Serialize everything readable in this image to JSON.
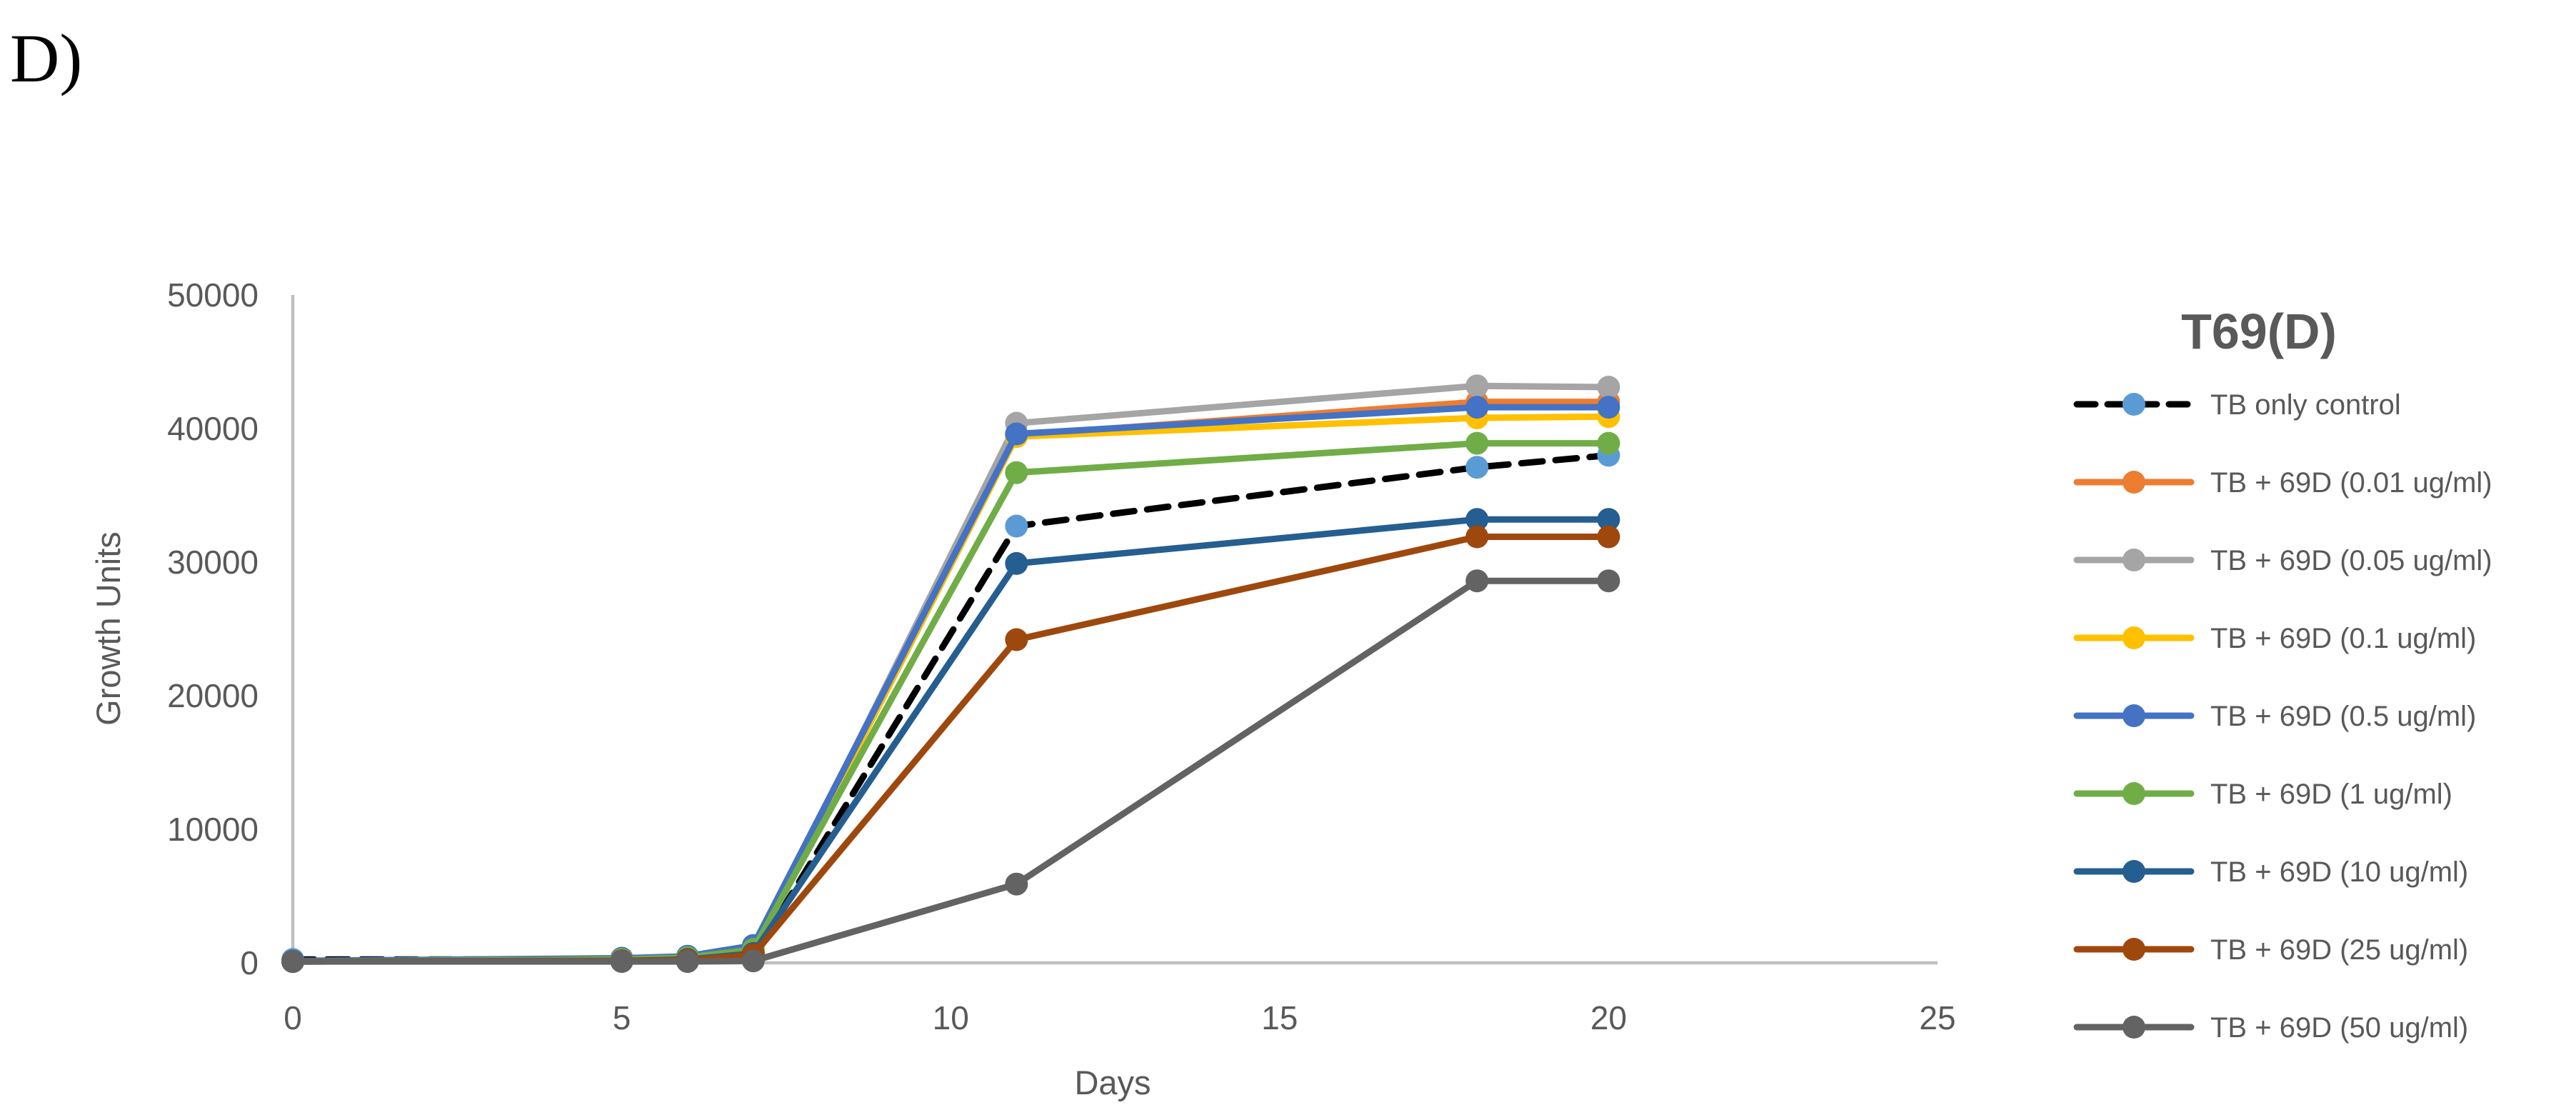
{
  "panel_label": "D)",
  "colors": {
    "axis_line": "#BFBFBF",
    "text": "#595959",
    "panel_label_color": "#000000"
  },
  "chart_data": {
    "type": "line",
    "title": "T69(D)",
    "xlabel": "Days",
    "ylabel": "Growth Units",
    "xlim": [
      0,
      25
    ],
    "ylim": [
      0,
      50000
    ],
    "x_ticks": [
      "0",
      "5",
      "10",
      "15",
      "20",
      "25"
    ],
    "y_ticks": [
      "0",
      "10000",
      "20000",
      "30000",
      "40000",
      "50000"
    ],
    "x_tick_values": [
      0,
      5,
      10,
      15,
      20,
      25
    ],
    "y_tick_values": [
      0,
      10000,
      20000,
      30000,
      40000,
      50000
    ],
    "grid": false,
    "legend_position": "right",
    "x": [
      0,
      5,
      6,
      7,
      11,
      18,
      20
    ],
    "series": [
      {
        "name": "TB only control",
        "line_color": "#000000",
        "marker_color": "#5B9BD5",
        "dashed": true,
        "values": [
          250,
          250,
          300,
          450,
          32700,
          37100,
          38000
        ]
      },
      {
        "name": "TB + 69D (0.01 ug/ml)",
        "line_color": "#ED7D31",
        "marker_color": "#ED7D31",
        "dashed": false,
        "values": [
          100,
          150,
          250,
          800,
          39500,
          42000,
          42000
        ]
      },
      {
        "name": "TB + 69D (0.05 ug/ml)",
        "line_color": "#A5A5A5",
        "marker_color": "#A5A5A5",
        "dashed": false,
        "values": [
          100,
          150,
          250,
          800,
          40400,
          43200,
          43100
        ]
      },
      {
        "name": "TB + 69D (0.1 ug/ml)",
        "line_color": "#FFC000",
        "marker_color": "#FFC000",
        "dashed": false,
        "values": [
          100,
          150,
          250,
          800,
          39400,
          40800,
          40900
        ]
      },
      {
        "name": "TB + 69D (0.5 ug/ml)",
        "line_color": "#4472C4",
        "marker_color": "#4472C4",
        "dashed": false,
        "values": [
          150,
          350,
          500,
          1300,
          39600,
          41600,
          41600
        ]
      },
      {
        "name": "TB + 69D (1 ug/ml)",
        "line_color": "#70AD47",
        "marker_color": "#70AD47",
        "dashed": false,
        "values": [
          100,
          250,
          400,
          1000,
          36700,
          38900,
          38900
        ]
      },
      {
        "name": "TB + 69D (10 ug/ml)",
        "line_color": "#255E91",
        "marker_color": "#255E91",
        "dashed": false,
        "values": [
          100,
          150,
          250,
          700,
          29900,
          33200,
          33200
        ]
      },
      {
        "name": "TB + 69D (25 ug/ml)",
        "line_color": "#9E480E",
        "marker_color": "#9E480E",
        "dashed": false,
        "values": [
          100,
          150,
          200,
          600,
          24200,
          31900,
          31900
        ]
      },
      {
        "name": "TB + 69D (50 ug/ml)",
        "line_color": "#636363",
        "marker_color": "#636363",
        "dashed": false,
        "values": [
          100,
          100,
          100,
          150,
          5900,
          28600,
          28600
        ]
      }
    ]
  }
}
